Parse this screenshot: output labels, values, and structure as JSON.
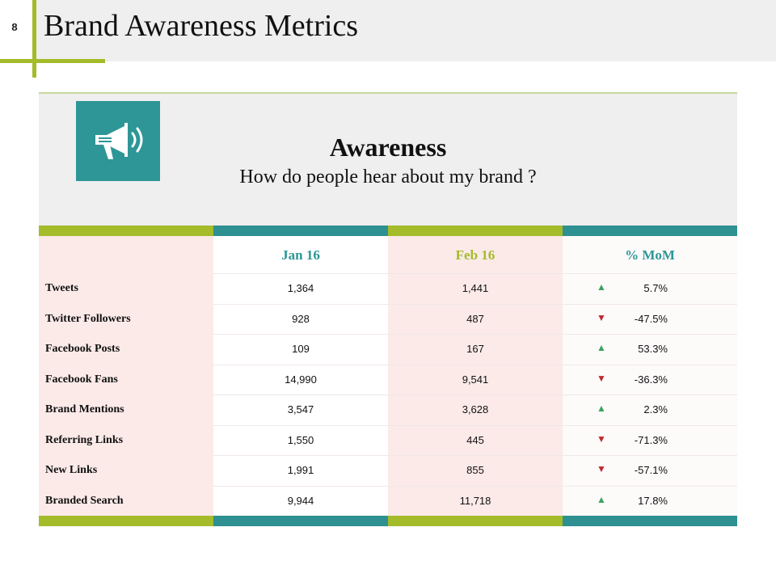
{
  "slide": {
    "page_number": "8",
    "title": "Brand Awareness Metrics"
  },
  "header": {
    "icon": "megaphone-icon",
    "title": "Awareness",
    "subtitle": "How do people hear about my brand ?"
  },
  "colors": {
    "accent_green": "#a4bb2a",
    "accent_teal": "#2e9696",
    "up": "#3aa35c",
    "down": "#c0272d",
    "label_bg": "#fbeae8"
  },
  "table": {
    "columns": [
      "Jan 16",
      "Feb 16",
      "% MoM"
    ],
    "rows": [
      {
        "label": "Tweets",
        "jan": "1,364",
        "feb": "1,441",
        "trend": "up",
        "mom": "5.7%"
      },
      {
        "label": "Twitter  Followers",
        "jan": "928",
        "feb": "487",
        "trend": "down",
        "mom": "-47.5%"
      },
      {
        "label": "Facebook Posts",
        "jan": "109",
        "feb": "167",
        "trend": "up",
        "mom": "53.3%"
      },
      {
        "label": "Facebook Fans",
        "jan": "14,990",
        "feb": "9,541",
        "trend": "down",
        "mom": "-36.3%"
      },
      {
        "label": "Brand Mentions",
        "jan": "3,547",
        "feb": "3,628",
        "trend": "up",
        "mom": "2.3%"
      },
      {
        "label": "Referring  Links",
        "jan": "1,550",
        "feb": "445",
        "trend": "down",
        "mom": "-71.3%"
      },
      {
        "label": "New Links",
        "jan": "1,991",
        "feb": "855",
        "trend": "down",
        "mom": "-57.1%"
      },
      {
        "label": "Branded Search",
        "jan": "9,944",
        "feb": "11,718",
        "trend": "up",
        "mom": "17.8%"
      }
    ]
  }
}
